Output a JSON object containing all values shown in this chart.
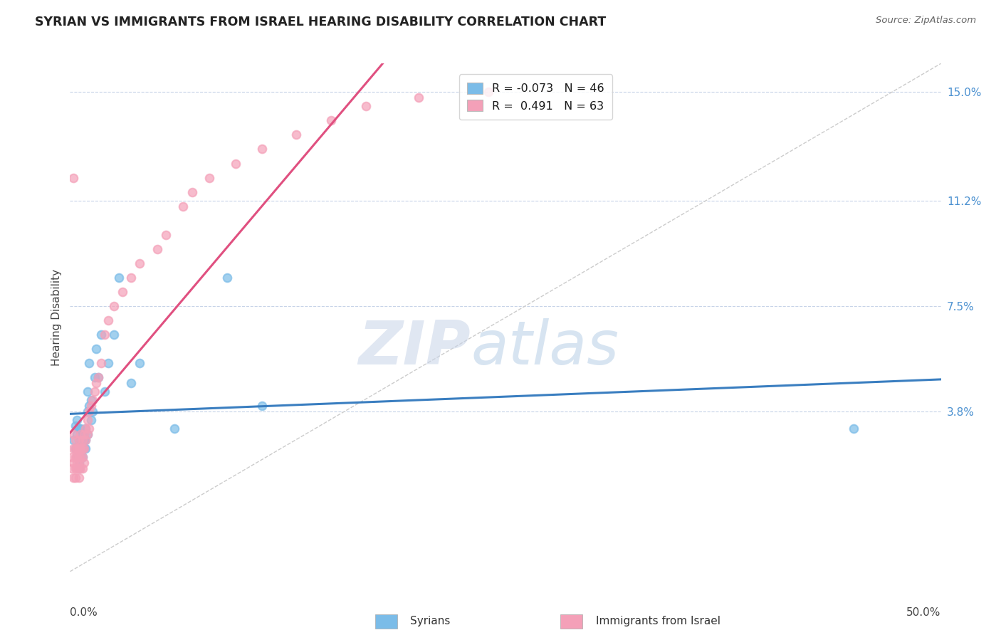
{
  "title": "SYRIAN VS IMMIGRANTS FROM ISRAEL HEARING DISABILITY CORRELATION CHART",
  "source": "Source: ZipAtlas.com",
  "ylabel": "Hearing Disability",
  "ylabel_right_labels": [
    "15.0%",
    "11.2%",
    "7.5%",
    "3.8%"
  ],
  "ylabel_right_values": [
    0.15,
    0.112,
    0.075,
    0.038
  ],
  "xmin": 0.0,
  "xmax": 0.5,
  "ymin": -0.018,
  "ymax": 0.16,
  "legend_r1": "R = -0.073",
  "legend_n1": "N = 46",
  "legend_r2": "R =  0.491",
  "legend_n2": "N = 63",
  "color_blue": "#7bbce8",
  "color_pink": "#f4a0b8",
  "color_blue_line": "#3a7ec0",
  "color_pink_line": "#e05080",
  "color_diag": "#cccccc",
  "syrians_x": [
    0.002,
    0.003,
    0.003,
    0.004,
    0.004,
    0.004,
    0.005,
    0.005,
    0.005,
    0.005,
    0.005,
    0.006,
    0.006,
    0.006,
    0.007,
    0.007,
    0.007,
    0.007,
    0.008,
    0.008,
    0.008,
    0.009,
    0.009,
    0.009,
    0.01,
    0.01,
    0.01,
    0.011,
    0.011,
    0.012,
    0.012,
    0.013,
    0.014,
    0.015,
    0.016,
    0.018,
    0.02,
    0.022,
    0.025,
    0.028,
    0.035,
    0.04,
    0.06,
    0.09,
    0.11,
    0.45
  ],
  "syrians_y": [
    0.028,
    0.033,
    0.025,
    0.03,
    0.022,
    0.035,
    0.028,
    0.032,
    0.025,
    0.02,
    0.018,
    0.028,
    0.022,
    0.032,
    0.03,
    0.025,
    0.028,
    0.022,
    0.03,
    0.028,
    0.025,
    0.032,
    0.028,
    0.025,
    0.038,
    0.045,
    0.03,
    0.04,
    0.055,
    0.035,
    0.042,
    0.038,
    0.05,
    0.06,
    0.05,
    0.065,
    0.045,
    0.055,
    0.065,
    0.085,
    0.048,
    0.055,
    0.032,
    0.085,
    0.04,
    0.032
  ],
  "israel_x": [
    0.001,
    0.001,
    0.002,
    0.002,
    0.002,
    0.002,
    0.002,
    0.003,
    0.003,
    0.003,
    0.003,
    0.003,
    0.004,
    0.004,
    0.004,
    0.004,
    0.005,
    0.005,
    0.005,
    0.005,
    0.005,
    0.005,
    0.006,
    0.006,
    0.006,
    0.006,
    0.007,
    0.007,
    0.007,
    0.007,
    0.008,
    0.008,
    0.008,
    0.009,
    0.009,
    0.01,
    0.01,
    0.011,
    0.011,
    0.012,
    0.013,
    0.014,
    0.015,
    0.016,
    0.018,
    0.02,
    0.022,
    0.025,
    0.03,
    0.035,
    0.04,
    0.05,
    0.055,
    0.065,
    0.07,
    0.08,
    0.095,
    0.11,
    0.13,
    0.15,
    0.17,
    0.2,
    0.24
  ],
  "israel_y": [
    0.022,
    0.018,
    0.025,
    0.02,
    0.03,
    0.015,
    0.12,
    0.018,
    0.022,
    0.028,
    0.025,
    0.015,
    0.022,
    0.025,
    0.02,
    0.018,
    0.025,
    0.022,
    0.028,
    0.02,
    0.018,
    0.015,
    0.025,
    0.03,
    0.022,
    0.018,
    0.025,
    0.028,
    0.022,
    0.018,
    0.03,
    0.025,
    0.02,
    0.032,
    0.028,
    0.035,
    0.03,
    0.038,
    0.032,
    0.04,
    0.042,
    0.045,
    0.048,
    0.05,
    0.055,
    0.065,
    0.07,
    0.075,
    0.08,
    0.085,
    0.09,
    0.095,
    0.1,
    0.11,
    0.115,
    0.12,
    0.125,
    0.13,
    0.135,
    0.14,
    0.145,
    0.148,
    0.15
  ],
  "watermark_zip": "ZIP",
  "watermark_atlas": "atlas",
  "background_color": "#ffffff",
  "grid_color": "#c8d4e8"
}
